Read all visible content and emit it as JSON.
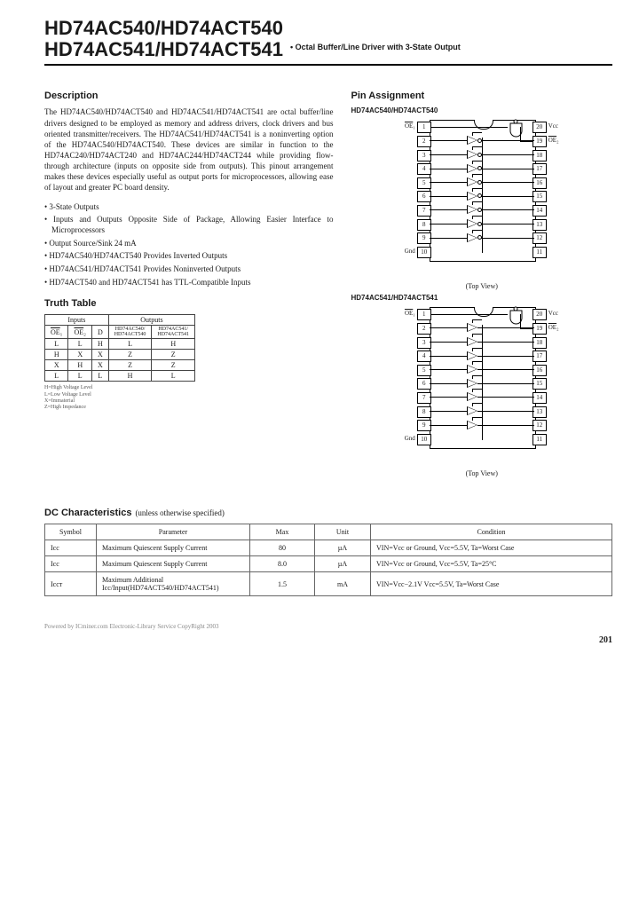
{
  "header": {
    "line1": "HD74AC540/HD74ACT540",
    "line2": "HD74AC541/HD74ACT541",
    "subtitle": "• Octal Buffer/Line Driver with 3-State Output"
  },
  "description": {
    "heading": "Description",
    "text": "The HD74AC540/HD74ACT540 and HD74AC541/HD74ACT541 are octal buffer/line drivers designed to be employed as memory and address drivers, clock drivers and bus oriented transmitter/receivers. The HD74AC541/HD74ACT541 is a noninverting option of the HD74AC540/HD74ACT540. These devices are similar in function to the HD74AC240/HD74ACT240 and HD74AC244/HD74ACT244 while providing flow-through architecture (inputs on opposite side from outputs). This pinout arrangement makes these devices especially useful as output ports for microprocessors, allowing ease of layout and greater PC board density."
  },
  "features": {
    "items": [
      "3-State Outputs",
      "Inputs and Outputs Opposite Side of Package, Allowing Easier Interface to Microprocessors",
      "Output Source/Sink 24 mA",
      "HD74AC540/HD74ACT540 Provides Inverted Outputs",
      "HD74AC541/HD74ACT541 Provides Noninverted Outputs",
      "HD74ACT540 and HD74ACT541 has TTL-Compatible Inputs"
    ]
  },
  "truth_table": {
    "heading": "Truth Table",
    "header_inputs": "Inputs",
    "header_outputs": "Outputs",
    "cols": [
      "OE₁",
      "OE₂",
      "D",
      "HD74AC540/HD74ACT540",
      "HD74AC541/HD74ACT541"
    ],
    "rows": [
      [
        "L",
        "L",
        "H",
        "L",
        "H"
      ],
      [
        "H",
        "X",
        "X",
        "Z",
        "Z"
      ],
      [
        "X",
        "H",
        "X",
        "Z",
        "Z"
      ],
      [
        "L",
        "L",
        "L",
        "H",
        "L"
      ]
    ],
    "legend": [
      "H=High Voltage Level",
      "L=Low Voltage Level",
      "X=Immaterial",
      "Z=High Impedance"
    ]
  },
  "pin_assignment": {
    "heading": "Pin Assignment",
    "chip1_label": "HD74AC540/HD74ACT540",
    "chip2_label": "HD74AC541/HD74ACT541",
    "top_view": "(Top View)",
    "left_labels": [
      "OE₁",
      "",
      "",
      "",
      "",
      "",
      "",
      "",
      "",
      "Gnd"
    ],
    "right_labels": [
      "Vcc",
      "OE₂",
      "",
      "",
      "",
      "",
      "",
      "",
      "",
      ""
    ],
    "left_pins": [
      "1",
      "2",
      "3",
      "4",
      "5",
      "6",
      "7",
      "8",
      "9",
      "10"
    ],
    "right_pins": [
      "20",
      "19",
      "18",
      "17",
      "16",
      "15",
      "14",
      "13",
      "12",
      "11"
    ]
  },
  "dc": {
    "heading": "DC Characteristics",
    "sub": "(unless otherwise specified)",
    "cols": [
      "Symbol",
      "Parameter",
      "Max",
      "Unit",
      "Condition"
    ],
    "rows": [
      {
        "symbol": "Icc",
        "param": "Maximum Quiescent Supply Current",
        "max": "80",
        "unit": "µA",
        "cond": "VIN=Vcc or Ground, Vcc=5.5V, Ta=Worst Case"
      },
      {
        "symbol": "Icc",
        "param": "Maximum Quiescent Supply Current",
        "max": "8.0",
        "unit": "µA",
        "cond": "VIN=Vcc or Ground, Vcc=5.5V, Ta=25°C"
      },
      {
        "symbol": "Iccт",
        "param": "Maximum Additional Icc/Input(HD74ACT540/HD74ACT541)",
        "max": "1.5",
        "unit": "mA",
        "cond": "VIN=Vcc−2.1V Vcc=5.5V, Ta=Worst Case"
      }
    ]
  },
  "footer": {
    "text": "Powered by ICminer.com Electronic-Library Service CopyRight 2003",
    "page": "201"
  },
  "colors": {
    "text": "#1a1a1a",
    "border": "#000000",
    "table_border": "#666666",
    "legend": "#555555"
  }
}
